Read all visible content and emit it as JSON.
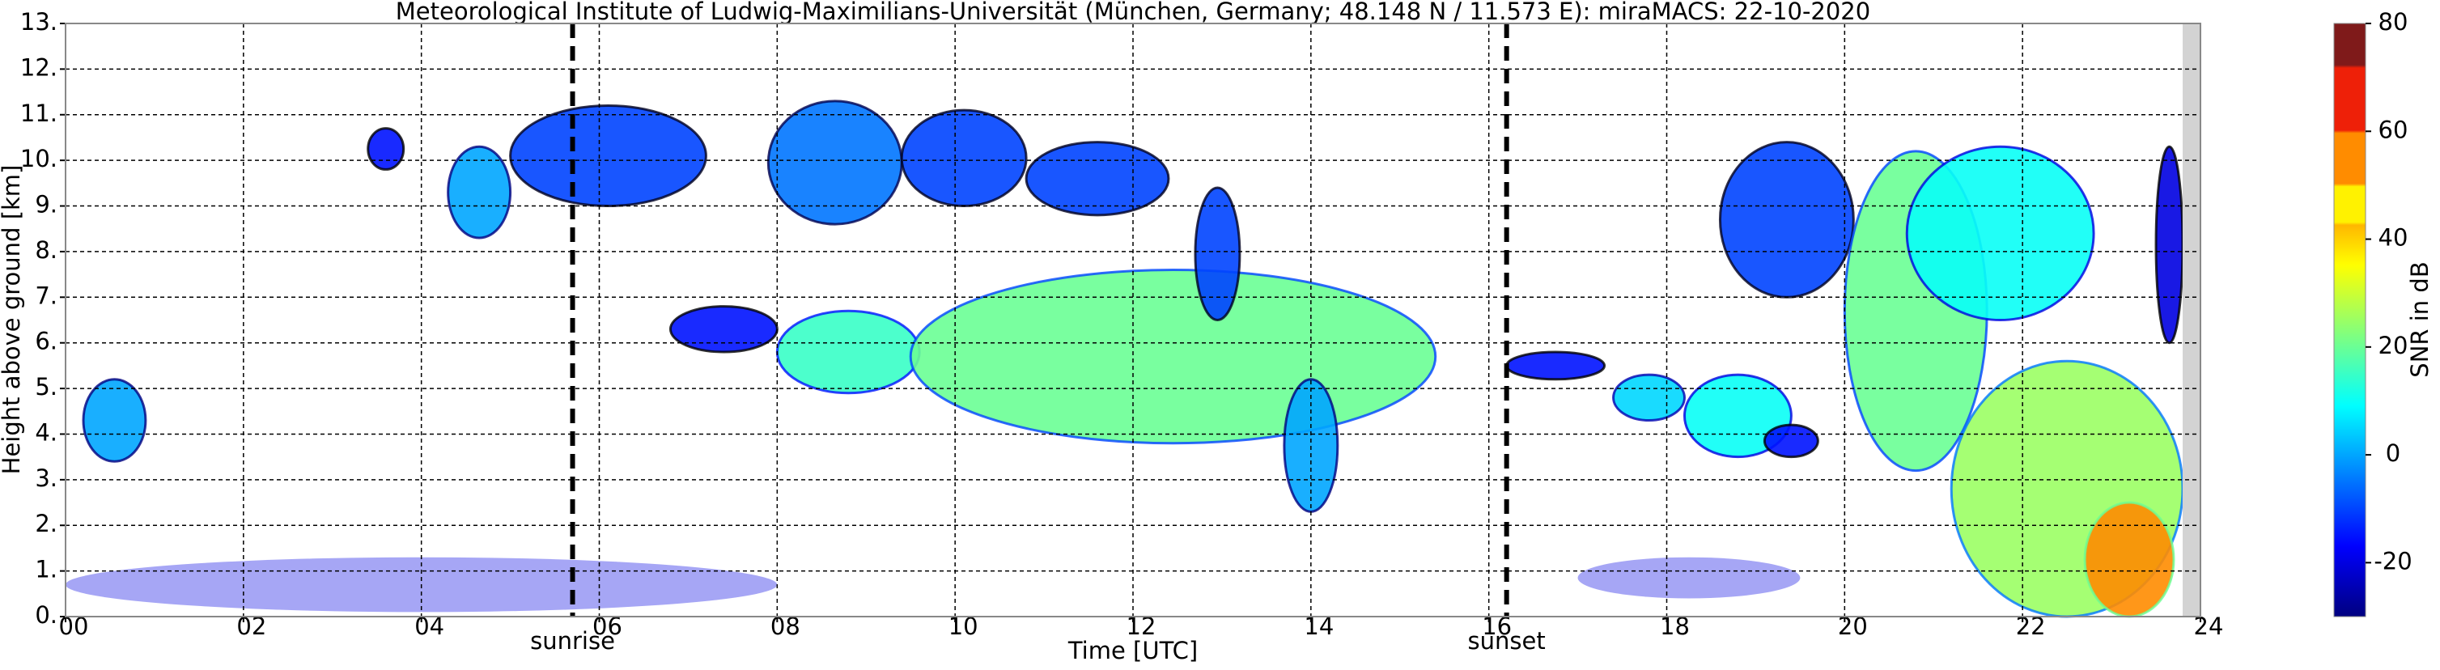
{
  "chart_data": {
    "type": "time-height",
    "title": "Meteorological Institute of Ludwig-Maximilians-Universität (München, Germany; 48.148 N / 11.573 E):    miraMACS: 22-10-2020",
    "x_label": "Time [UTC]",
    "y_label": "Height above ground [km]",
    "colorbar_label": "SNR in dB",
    "xlim": [
      0,
      24
    ],
    "ylim": [
      0,
      13
    ],
    "clim": [
      -30,
      80
    ],
    "grid": true,
    "xticks": [
      {
        "value": 0,
        "label": "00"
      },
      {
        "value": 2,
        "label": "02"
      },
      {
        "value": 4,
        "label": "04"
      },
      {
        "value": 6,
        "label": "06"
      },
      {
        "value": 8,
        "label": "08"
      },
      {
        "value": 10,
        "label": "10"
      },
      {
        "value": 12,
        "label": "12"
      },
      {
        "value": 14,
        "label": "14"
      },
      {
        "value": 16,
        "label": "16"
      },
      {
        "value": 18,
        "label": "18"
      },
      {
        "value": 20,
        "label": "20"
      },
      {
        "value": 22,
        "label": "22"
      },
      {
        "value": 24,
        "label": "24"
      }
    ],
    "yticks": [
      {
        "value": 0,
        "label": "0."
      },
      {
        "value": 1,
        "label": "1."
      },
      {
        "value": 2,
        "label": "2."
      },
      {
        "value": 3,
        "label": "3."
      },
      {
        "value": 4,
        "label": "4."
      },
      {
        "value": 5,
        "label": "5."
      },
      {
        "value": 6,
        "label": "6."
      },
      {
        "value": 7,
        "label": "7."
      },
      {
        "value": 8,
        "label": "8."
      },
      {
        "value": 9,
        "label": "9."
      },
      {
        "value": 10,
        "label": "10."
      },
      {
        "value": 11,
        "label": "11."
      },
      {
        "value": 12,
        "label": "12."
      },
      {
        "value": 13,
        "label": "13."
      }
    ],
    "cticks": [
      -20,
      0,
      20,
      40,
      60,
      80
    ],
    "sun_events": [
      {
        "label": "sunrise",
        "x": 5.7
      },
      {
        "label": "sunset",
        "x": 16.2
      }
    ],
    "no_data_after": 23.8,
    "echoes": [
      {
        "t": [
          0.2,
          0.9
        ],
        "h": [
          3.4,
          5.2
        ],
        "snr": 0
      },
      {
        "t": [
          3.4,
          3.8
        ],
        "h": [
          9.8,
          10.7
        ],
        "snr": -15
      },
      {
        "t": [
          4.3,
          5.0
        ],
        "h": [
          8.3,
          10.3
        ],
        "snr": 0
      },
      {
        "t": [
          5.0,
          7.2
        ],
        "h": [
          9.0,
          11.2
        ],
        "snr": -10
      },
      {
        "t": [
          7.9,
          9.4
        ],
        "h": [
          8.6,
          11.3
        ],
        "snr": -5
      },
      {
        "t": [
          9.4,
          10.8
        ],
        "h": [
          9.0,
          11.1
        ],
        "snr": -10
      },
      {
        "t": [
          10.8,
          12.4
        ],
        "h": [
          8.8,
          10.4
        ],
        "snr": -10
      },
      {
        "t": [
          6.8,
          8.0
        ],
        "h": [
          5.8,
          6.8
        ],
        "snr": -15
      },
      {
        "t": [
          8.0,
          9.6
        ],
        "h": [
          4.9,
          6.7
        ],
        "snr": 15
      },
      {
        "t": [
          9.5,
          15.4
        ],
        "h": [
          3.8,
          7.6
        ],
        "snr": 20
      },
      {
        "t": [
          12.7,
          13.2
        ],
        "h": [
          6.5,
          9.4
        ],
        "snr": -10
      },
      {
        "t": [
          13.7,
          14.3
        ],
        "h": [
          2.3,
          5.2
        ],
        "snr": 0
      },
      {
        "t": [
          16.2,
          17.3
        ],
        "h": [
          5.2,
          5.8
        ],
        "snr": -15
      },
      {
        "t": [
          17.4,
          18.2
        ],
        "h": [
          4.3,
          5.3
        ],
        "snr": 5
      },
      {
        "t": [
          18.2,
          19.4
        ],
        "h": [
          3.5,
          5.3
        ],
        "snr": 10
      },
      {
        "t": [
          19.1,
          19.7
        ],
        "h": [
          3.5,
          4.2
        ],
        "snr": -15
      },
      {
        "t": [
          18.6,
          20.1
        ],
        "h": [
          7.0,
          10.4
        ],
        "snr": -10
      },
      {
        "t": [
          20.0,
          21.6
        ],
        "h": [
          3.2,
          10.2
        ],
        "snr": 20
      },
      {
        "t": [
          20.7,
          22.8
        ],
        "h": [
          6.5,
          10.3
        ],
        "snr": 10
      },
      {
        "t": [
          21.2,
          23.8
        ],
        "h": [
          0,
          5.6
        ],
        "snr": 25
      },
      {
        "t": [
          22.7,
          23.7
        ],
        "h": [
          0,
          2.5
        ],
        "snr": 50
      },
      {
        "t": [
          23.5,
          23.8
        ],
        "h": [
          6.0,
          10.3
        ],
        "snr": -20
      },
      {
        "t": [
          0,
          8.0
        ],
        "h": [
          0.1,
          1.3
        ],
        "snr": -20
      },
      {
        "t": [
          17.0,
          19.5
        ],
        "h": [
          0.4,
          1.3
        ],
        "snr": -20
      }
    ]
  }
}
